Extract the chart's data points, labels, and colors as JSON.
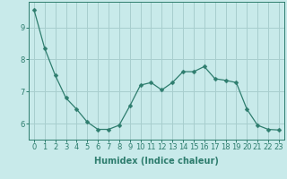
{
  "x": [
    0,
    1,
    2,
    3,
    4,
    5,
    6,
    7,
    8,
    9,
    10,
    11,
    12,
    13,
    14,
    15,
    16,
    17,
    18,
    19,
    20,
    21,
    22,
    23
  ],
  "y": [
    9.55,
    8.35,
    7.5,
    6.8,
    6.45,
    6.05,
    5.82,
    5.82,
    5.95,
    6.55,
    7.2,
    7.28,
    7.05,
    7.28,
    7.62,
    7.62,
    7.78,
    7.4,
    7.35,
    7.28,
    6.45,
    5.95,
    5.82,
    5.8
  ],
  "line_color": "#2e7d6e",
  "marker": "D",
  "marker_size": 2.5,
  "bg_color": "#c8eaea",
  "grid_color": "#a8cece",
  "xlabel": "Humidex (Indice chaleur)",
  "xlabel_fontsize": 7,
  "tick_fontsize": 6,
  "ylim": [
    5.5,
    9.8
  ],
  "xlim": [
    -0.5,
    23.5
  ],
  "yticks": [
    6,
    7,
    8,
    9
  ],
  "xticks": [
    0,
    1,
    2,
    3,
    4,
    5,
    6,
    7,
    8,
    9,
    10,
    11,
    12,
    13,
    14,
    15,
    16,
    17,
    18,
    19,
    20,
    21,
    22,
    23
  ]
}
